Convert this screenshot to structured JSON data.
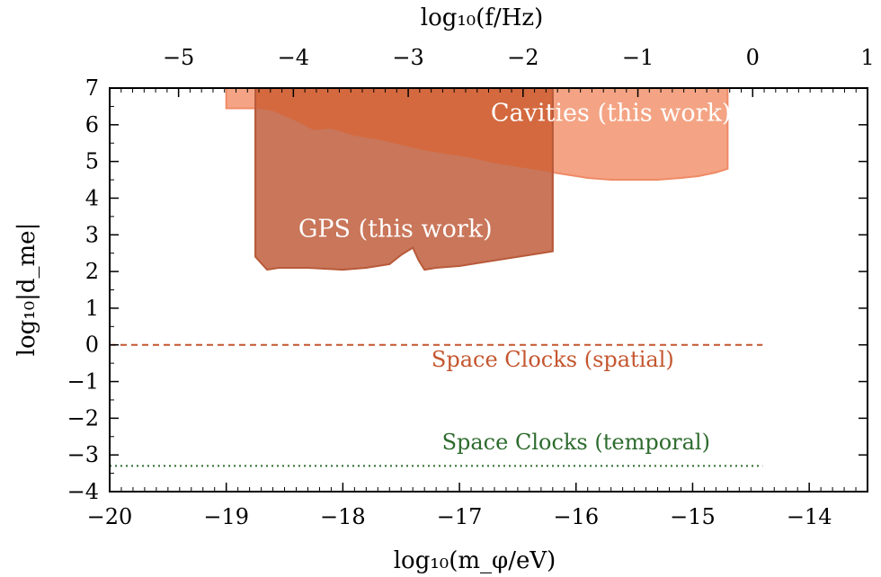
{
  "colors": {
    "cavities_fill": "#F4A484",
    "cavities_edge": "#EF8A66",
    "cavities_dark_fill": "#D4693F",
    "gps_fill": "#C9765A",
    "gps_edge": "#B85A3A",
    "spatial_line": "#C4562F",
    "temporal_line": "#2E6B2E",
    "region_text": "#FFFFFF"
  },
  "chart_data": {
    "type": "area",
    "xlabel": "log₁₀(m_φ/eV)",
    "ylabel": "log₁₀|d_me|",
    "top_xlabel": "log₁₀(f/Hz)",
    "xlim": [
      -20,
      -13.5
    ],
    "ylim": [
      -4,
      7
    ],
    "top_xlim": [
      -5.6,
      1.0
    ],
    "x_ticks": [
      -20,
      -19,
      -18,
      -17,
      -16,
      -15,
      -14
    ],
    "x_tick_labels": [
      "−20",
      "−19",
      "−18",
      "−17",
      "−16",
      "−15",
      "−14"
    ],
    "y_ticks": [
      -4,
      -3,
      -2,
      -1,
      0,
      1,
      2,
      3,
      4,
      5,
      6,
      7
    ],
    "y_tick_labels": [
      "−4",
      "−3",
      "−2",
      "−1",
      "0",
      "1",
      "2",
      "3",
      "4",
      "5",
      "6",
      "7"
    ],
    "top_ticks": [
      -5,
      -4,
      -3,
      -2,
      -1,
      0,
      1
    ],
    "top_tick_labels": [
      "−5",
      "−4",
      "−3",
      "−2",
      "−1",
      "0",
      "1"
    ],
    "grid": false,
    "series": [
      {
        "name": "Cavities (this work)",
        "kind": "exclusion-region",
        "x": [
          -19.0,
          -18.75,
          -18.6,
          -18.4,
          -18.25,
          -18.1,
          -17.9,
          -17.7,
          -17.5,
          -17.3,
          -17.1,
          -16.9,
          -16.7,
          -16.5,
          -16.3,
          -16.1,
          -15.9,
          -15.7,
          -15.5,
          -15.3,
          -15.1,
          -14.95,
          -14.8,
          -14.7
        ],
        "y": [
          6.45,
          6.45,
          6.38,
          6.1,
          5.85,
          5.9,
          5.7,
          5.6,
          5.45,
          5.3,
          5.2,
          5.1,
          4.95,
          4.85,
          4.75,
          4.65,
          4.55,
          4.5,
          4.5,
          4.5,
          4.55,
          4.6,
          4.7,
          4.8
        ],
        "upper": 7
      },
      {
        "name": "GPS (this work)",
        "kind": "exclusion-region",
        "x": [
          -18.75,
          -18.65,
          -18.55,
          -18.3,
          -18.0,
          -17.8,
          -17.6,
          -17.5,
          -17.4,
          -17.35,
          -17.3,
          -17.2,
          -17.0,
          -16.8,
          -16.6,
          -16.4,
          -16.2
        ],
        "y": [
          2.4,
          2.05,
          2.1,
          2.1,
          2.05,
          2.1,
          2.2,
          2.45,
          2.65,
          2.3,
          2.05,
          2.1,
          2.15,
          2.25,
          2.35,
          2.45,
          2.55
        ],
        "upper": 7
      },
      {
        "name": "Space Clocks (spatial)",
        "kind": "projection-line",
        "style": "dashed",
        "x": [
          -20,
          -14.4
        ],
        "y": [
          0,
          0
        ]
      },
      {
        "name": "Space Clocks (temporal)",
        "kind": "projection-line",
        "style": "dotted",
        "x": [
          -20,
          -14.4
        ],
        "y": [
          -3.3,
          -3.3
        ]
      }
    ],
    "annotations": [
      {
        "text": "Cavities (this work)",
        "x": -15.7,
        "y": 6.1
      },
      {
        "text": "GPS (this work)",
        "x": -17.55,
        "y": 2.95
      },
      {
        "text": "Space Clocks (spatial)",
        "x": -16.2,
        "y": -0.6
      },
      {
        "text": "Space Clocks (temporal)",
        "x": -16.0,
        "y": -2.85
      }
    ]
  }
}
